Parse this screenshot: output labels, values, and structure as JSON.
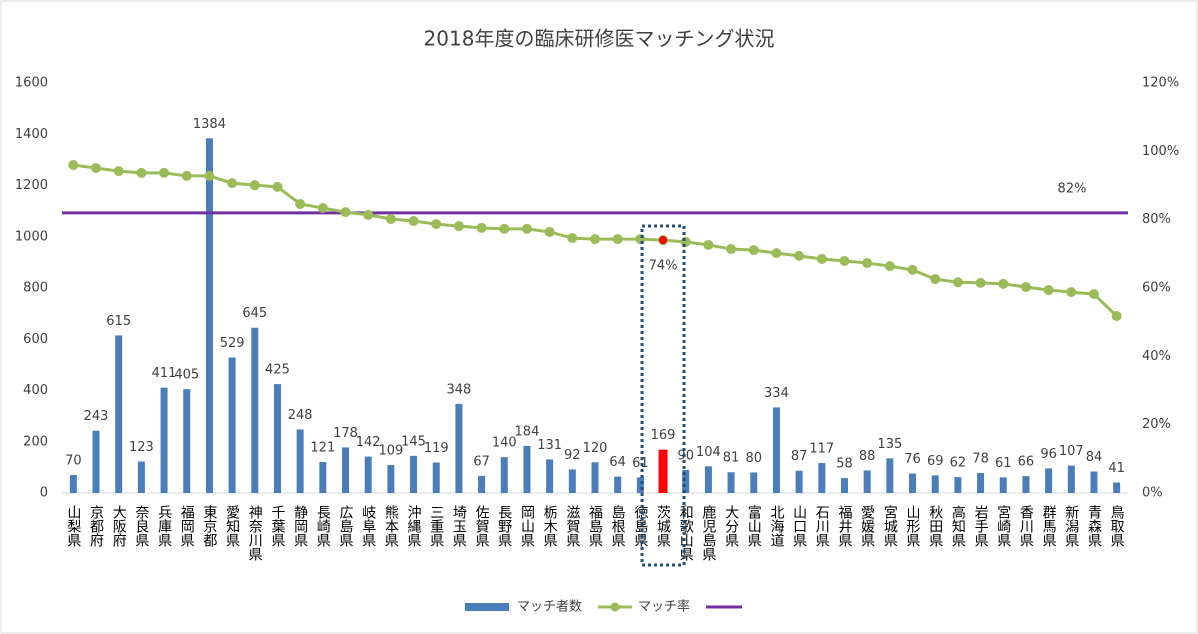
{
  "chart_data": {
    "type": "combo",
    "title": "2018年度の臨床研修医マッチング状況",
    "categories": [
      "山梨県",
      "京都府",
      "大阪府",
      "奈良県",
      "兵庫県",
      "福岡県",
      "東京都",
      "愛知県",
      "神奈川県",
      "千葉県",
      "静岡県",
      "長崎県",
      "広島県",
      "岐阜県",
      "熊本県",
      "沖縄県",
      "三重県",
      "埼玉県",
      "佐賀県",
      "長野県",
      "岡山県",
      "栃木県",
      "滋賀県",
      "福島県",
      "島根県",
      "徳島県",
      "茨城県",
      "和歌山県",
      "鹿児島県",
      "大分県",
      "富山県",
      "北海道",
      "山口県",
      "石川県",
      "福井県",
      "愛媛県",
      "宮城県",
      "山形県",
      "秋田県",
      "高知県",
      "岩手県",
      "宮崎県",
      "香川県",
      "群馬県",
      "新潟県",
      "青森県",
      "鳥取県"
    ],
    "series": [
      {
        "name": "マッチ者数",
        "type": "bar",
        "color": "#4a7ebb",
        "axis": "y",
        "values": [
          70,
          243,
          615,
          123,
          411,
          405,
          1384,
          529,
          645,
          425,
          248,
          121,
          178,
          142,
          109,
          145,
          119,
          348,
          67,
          140,
          184,
          131,
          92,
          120,
          64,
          61,
          169,
          90,
          104,
          81,
          80,
          334,
          87,
          117,
          58,
          88,
          135,
          76,
          69,
          62,
          78,
          61,
          66,
          96,
          107,
          84,
          41
        ]
      },
      {
        "name": "マッチ率",
        "type": "line",
        "color": "#9bbb59",
        "axis": "y2",
        "values": [
          96.0,
          95.1,
          94.2,
          93.7,
          93.7,
          92.8,
          92.8,
          90.7,
          90.1,
          89.6,
          84.6,
          83.4,
          82.2,
          81.4,
          80.2,
          79.6,
          78.7,
          78.1,
          77.6,
          77.3,
          77.3,
          76.4,
          74.6,
          74.3,
          74.3,
          74.3,
          74,
          73.5,
          72.6,
          71.4,
          71.1,
          70.2,
          69.4,
          68.5,
          67.9,
          67.3,
          66.4,
          65.3,
          62.6,
          61.7,
          61.5,
          61.2,
          60.3,
          59.4,
          58.8,
          58.2,
          51.8
        ],
        "value_labels": [
          null,
          null,
          null,
          null,
          null,
          null,
          null,
          null,
          null,
          null,
          null,
          null,
          null,
          null,
          null,
          null,
          null,
          null,
          null,
          null,
          null,
          null,
          null,
          null,
          null,
          null,
          "74%",
          null,
          null,
          null,
          null,
          null,
          null,
          null,
          null,
          null,
          null,
          null,
          null,
          null,
          null,
          null,
          null,
          null,
          null,
          null,
          null
        ]
      }
    ],
    "reference_line": {
      "value": 82,
      "label": "82%",
      "color": "#7030a0",
      "axis": "y2"
    },
    "highlight_index": 26,
    "highlight_color": "#ff0000",
    "ylim": [
      0,
      1600
    ],
    "yticks": [
      0,
      200,
      400,
      600,
      800,
      1000,
      1200,
      1400,
      1600
    ],
    "y2lim": [
      0,
      120
    ],
    "y2ticks": [
      {
        "value": 0,
        "label": "0%"
      },
      {
        "value": 20,
        "label": "20%"
      },
      {
        "value": 40,
        "label": "40%"
      },
      {
        "value": 60,
        "label": "60%"
      },
      {
        "value": 80,
        "label": "80%"
      },
      {
        "value": 100,
        "label": "100%"
      },
      {
        "value": 120,
        "label": "120%"
      }
    ],
    "grid": false
  }
}
